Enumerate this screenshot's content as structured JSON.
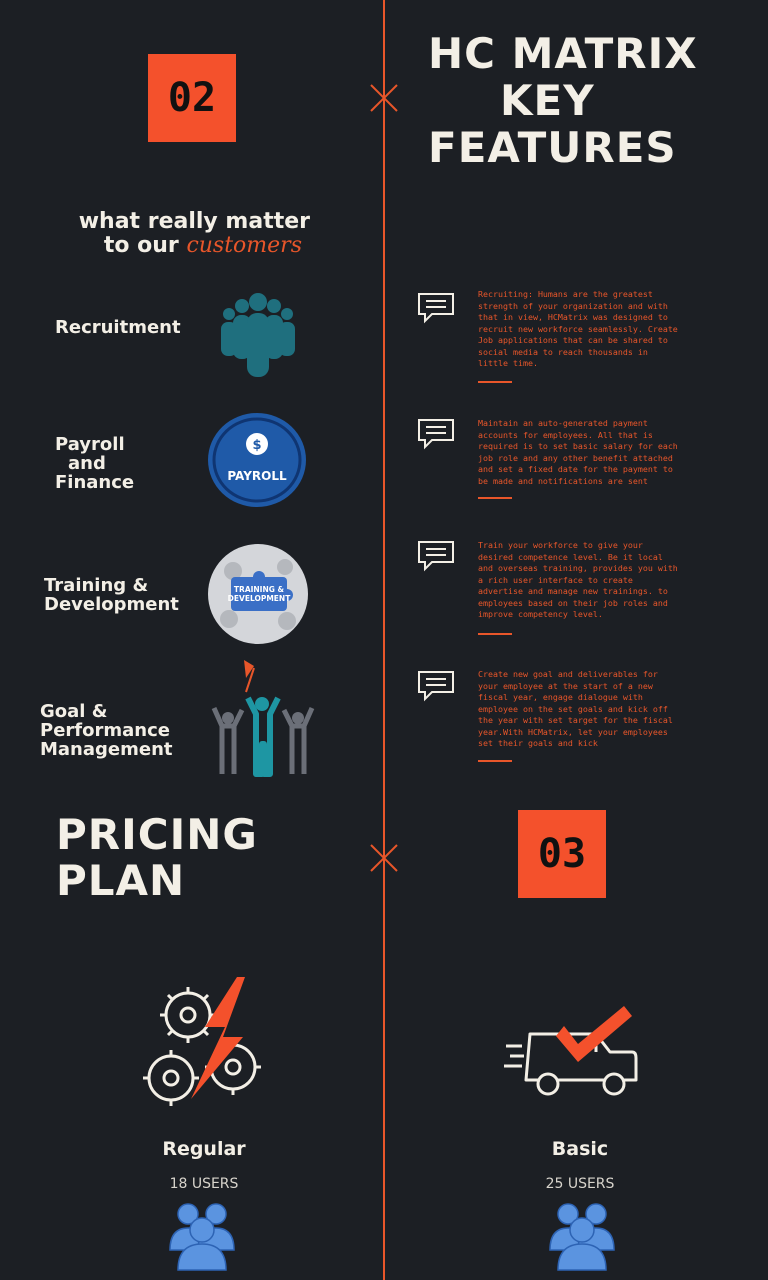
{
  "left": {
    "badge_number": "02",
    "tagline": {
      "line1": "what really matter",
      "line2_prefix": "to our",
      "line2_accent": "customers"
    },
    "features": [
      {
        "label_lines": [
          "Recruitment"
        ],
        "icon": "people-group-icon"
      },
      {
        "label_lines": [
          "Payroll",
          "and",
          "Finance"
        ],
        "icon": "payroll-badge-icon",
        "icon_text": "PAYROLL"
      },
      {
        "label_lines": [
          "Training &",
          "Development"
        ],
        "icon": "training-puzzle-icon",
        "icon_text_lines": [
          "TRAINING &",
          "DEVELOPMENT"
        ]
      },
      {
        "label_lines": [
          "Goal &",
          "Performance",
          "Management"
        ],
        "icon": "team-goal-flag-icon"
      }
    ]
  },
  "right": {
    "title_lines": [
      "HC MATRIX",
      "KEY",
      "FEATURES"
    ],
    "descriptions": [
      "Recruiting: Humans are the greatest strength of your organization and with that in view, HCMatrix was designed to recruit new workforce seamlessly. Create Job applications that can be shared to social media to reach thousands in little time.",
      "Maintain an auto-generated payment accounts for employees. All that is required is to set basic salary for each job role and any other benefit attached and set a fixed date for the payment to be made and notifications are sent",
      "Train your workforce to give your desired competence level. Be it local and overseas training, provides you with a rich user interface to create advertise and manage new trainings. to employees based on their job roles and improve competency level.",
      "Create new goal and deliverables for your employee at the start of a new fiscal year, engage dialogue with employee on the set goals and kick off the year with set target for the fiscal year.With HCMatrix, let your employees set their goals and kick"
    ]
  },
  "pricing": {
    "title_lines": [
      "PRICING",
      "PLAN"
    ],
    "badge_number": "03",
    "plans": [
      {
        "name": "Regular",
        "users": "18 USERS",
        "icon": "gears-lightning-icon"
      },
      {
        "name": "Basic",
        "users": "25 USERS",
        "icon": "delivery-truck-check-icon"
      }
    ]
  },
  "colors": {
    "background": "#1c1f24",
    "accent": "#e8562a",
    "badge": "#f4512c",
    "text": "#f3efe6",
    "teal": "#1f6f7e",
    "payroll_blue": "#1f5aa8"
  }
}
